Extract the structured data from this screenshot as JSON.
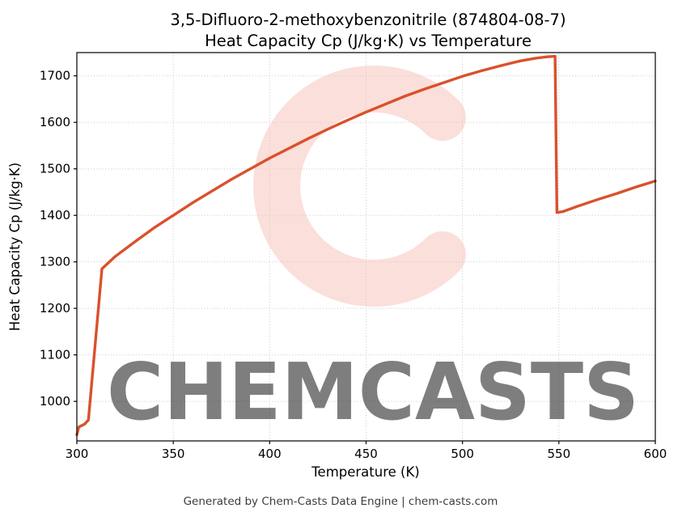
{
  "chart_data": {
    "type": "line",
    "title_line1": "3,5-Difluoro-2-methoxybenzonitrile (874804-08-7)",
    "title_line2": "Heat Capacity Cp (J/kg·K) vs Temperature",
    "xlabel": "Temperature (K)",
    "ylabel": "Heat Capacity Cp (J/kg·K)",
    "xlim": [
      300,
      600
    ],
    "ylim": [
      915,
      1750
    ],
    "xticks": [
      300,
      350,
      400,
      450,
      500,
      550,
      600
    ],
    "yticks": [
      1000,
      1100,
      1200,
      1300,
      1400,
      1500,
      1600,
      1700
    ],
    "grid": true,
    "legend_position": "none",
    "line_color": "#d9512c",
    "series": [
      {
        "name": "Heat Capacity Cp",
        "points": [
          [
            300,
            928
          ],
          [
            301,
            945
          ],
          [
            304,
            951
          ],
          [
            306,
            960
          ],
          [
            313,
            1285
          ],
          [
            320,
            1312
          ],
          [
            330,
            1343
          ],
          [
            340,
            1373
          ],
          [
            350,
            1400
          ],
          [
            360,
            1427
          ],
          [
            370,
            1452
          ],
          [
            380,
            1477
          ],
          [
            390,
            1500
          ],
          [
            400,
            1523
          ],
          [
            410,
            1544
          ],
          [
            420,
            1565
          ],
          [
            430,
            1585
          ],
          [
            440,
            1604
          ],
          [
            450,
            1622
          ],
          [
            460,
            1639
          ],
          [
            470,
            1656
          ],
          [
            480,
            1671
          ],
          [
            490,
            1685
          ],
          [
            500,
            1699
          ],
          [
            510,
            1711
          ],
          [
            520,
            1722
          ],
          [
            530,
            1732
          ],
          [
            538,
            1738
          ],
          [
            544,
            1741
          ],
          [
            548,
            1742
          ],
          [
            549,
            1406
          ],
          [
            552,
            1408
          ],
          [
            560,
            1420
          ],
          [
            570,
            1434
          ],
          [
            580,
            1447
          ],
          [
            590,
            1461
          ],
          [
            600,
            1474
          ]
        ]
      }
    ]
  },
  "watermark": {
    "text": "CHEMCASTS",
    "color": "#f5c0b5",
    "logo": "chemcasts-c-swirl"
  },
  "footer": {
    "text": "Generated by Chem-Casts Data Engine | chem-casts.com"
  }
}
